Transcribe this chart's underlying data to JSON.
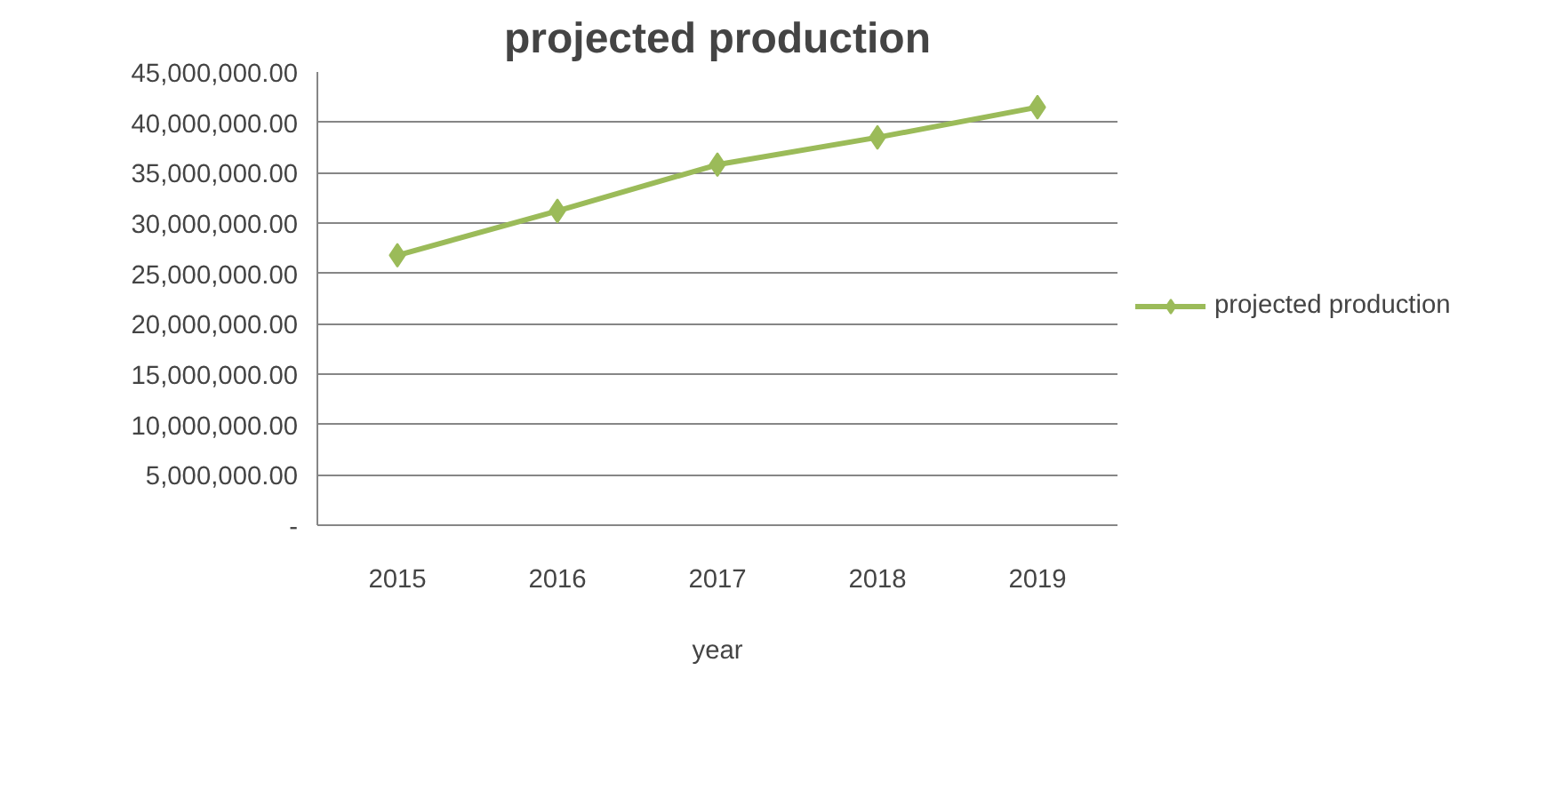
{
  "chart_data": {
    "type": "line",
    "title": "projected production",
    "xlabel": "year",
    "categories": [
      "2015",
      "2016",
      "2017",
      "2018",
      "2019"
    ],
    "series": [
      {
        "name": "projected production",
        "color": "#9bbb59",
        "values": [
          26800000,
          31200000,
          35800000,
          38500000,
          41500000
        ]
      }
    ],
    "ylim": [
      0,
      45000000
    ],
    "yticks": [
      {
        "value": 0,
        "label": "-"
      },
      {
        "value": 5000000,
        "label": "5,000,000.00"
      },
      {
        "value": 10000000,
        "label": "10,000,000.00"
      },
      {
        "value": 15000000,
        "label": "15,000,000.00"
      },
      {
        "value": 20000000,
        "label": "20,000,000.00"
      },
      {
        "value": 25000000,
        "label": "25,000,000.00"
      },
      {
        "value": 30000000,
        "label": "30,000,000.00"
      },
      {
        "value": 35000000,
        "label": "35,000,000.00"
      },
      {
        "value": 40000000,
        "label": "40,000,000.00"
      },
      {
        "value": 45000000,
        "label": "45,000,000.00"
      }
    ],
    "grid": "y",
    "legend": "right",
    "marker": "diamond",
    "line_style": "solid"
  }
}
